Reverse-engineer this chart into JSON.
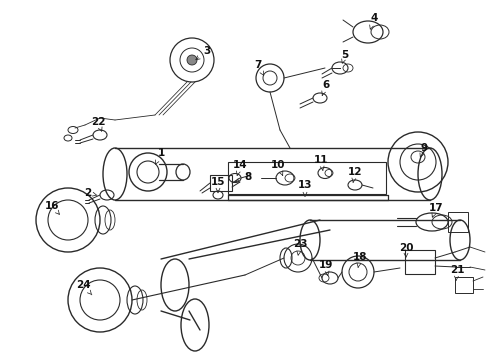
{
  "bg_color": "#ffffff",
  "line_color": "#2a2a2a",
  "text_color": "#111111",
  "fig_width": 4.9,
  "fig_height": 3.6,
  "dpi": 100
}
